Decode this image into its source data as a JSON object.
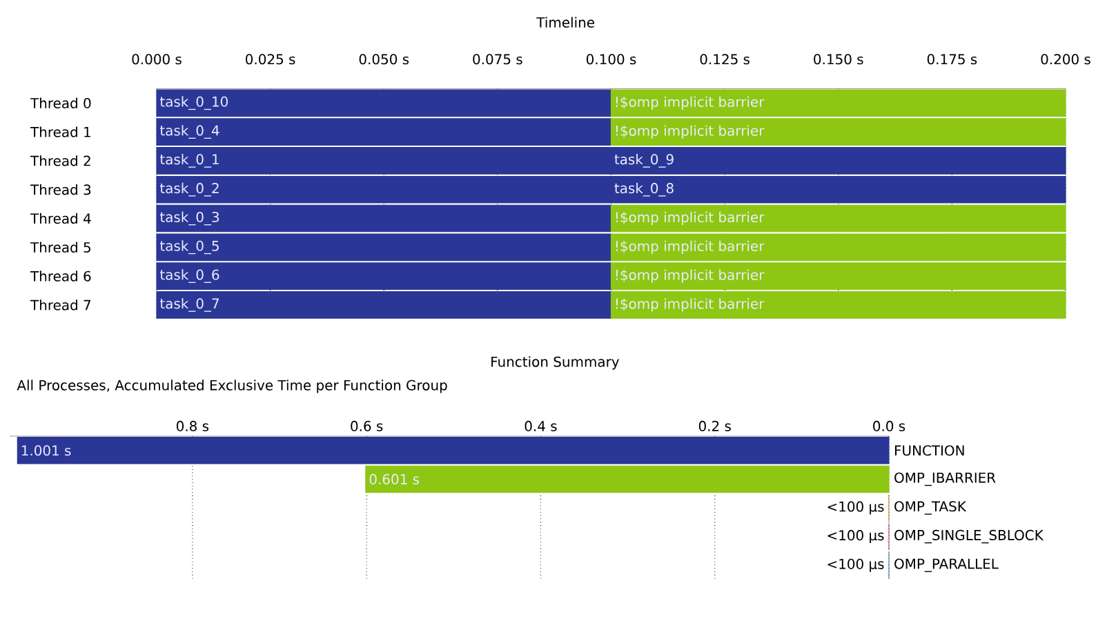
{
  "chart_data": [
    {
      "type": "bar",
      "title": "Timeline",
      "orientation": "horizontal",
      "stacked": true,
      "grid": "x",
      "categories": [
        "Thread 0",
        "Thread 1",
        "Thread 2",
        "Thread 3",
        "Thread 4",
        "Thread 5",
        "Thread 6",
        "Thread 7"
      ],
      "xlim": [
        0,
        0.2
      ],
      "xticks": [
        {
          "value": 0,
          "label": "0.000 s"
        },
        {
          "value": 0.025,
          "label": "0.025 s"
        },
        {
          "value": 0.05,
          "label": "0.050 s"
        },
        {
          "value": 0.075,
          "label": "0.075 s"
        },
        {
          "value": 0.1,
          "label": "0.100 s"
        },
        {
          "value": 0.125,
          "label": "0.125 s"
        },
        {
          "value": 0.15,
          "label": "0.150 s"
        },
        {
          "value": 0.175,
          "label": "0.175 s"
        },
        {
          "value": 0.2,
          "label": "0.200 s"
        }
      ],
      "series": [
        {
          "color": "#2b3796",
          "values": [
            0.1,
            0.1,
            0.1,
            0.1,
            0.1,
            0.1,
            0.1,
            0.1
          ],
          "value_labels": [
            "task_0_10",
            "task_0_4",
            "task_0_1",
            "task_0_2",
            "task_0_3",
            "task_0_5",
            "task_0_6",
            "task_0_7"
          ]
        },
        {
          "colors": [
            "#8dc714",
            "#8dc714",
            "#2b3796",
            "#2b3796",
            "#8dc714",
            "#8dc714",
            "#8dc714",
            "#8dc714"
          ],
          "values": [
            0.1,
            0.1,
            0.1,
            0.1,
            0.1,
            0.1,
            0.1,
            0.1
          ],
          "value_labels": [
            "!$omp implicit barrier",
            "!$omp implicit barrier",
            "task_0_9",
            "task_0_8",
            "!$omp implicit barrier",
            "!$omp implicit barrier",
            "!$omp implicit barrier",
            "!$omp implicit barrier"
          ]
        }
      ]
    },
    {
      "type": "bar",
      "title": "Function Summary",
      "subtitle": "All Processes, Accumulated Exclusive Time per Function Group",
      "orientation": "horizontal",
      "grid": "x",
      "categories": [
        "FUNCTION",
        "OMP_IBARRIER",
        "OMP_TASK",
        "OMP_SINGLE_SBLOCK",
        "OMP_PARALLEL"
      ],
      "values": [
        1.001,
        0.601,
        0,
        0,
        0
      ],
      "value_labels": [
        "1.001 s",
        "0.601 s",
        "<100 µs",
        "<100 µs",
        "<100 µs"
      ],
      "colors": [
        "#2b3796",
        "#8dc714",
        "#c8843c",
        "#b8506a",
        "#5a7a98"
      ],
      "xlim": [
        1.01,
        0
      ],
      "xticks": [
        {
          "value": 0.8,
          "label": "0.8 s"
        },
        {
          "value": 0.6,
          "label": "0.6 s"
        },
        {
          "value": 0.4,
          "label": "0.4 s"
        },
        {
          "value": 0.2,
          "label": "0.2 s"
        },
        {
          "value": 0,
          "label": "0.0 s"
        }
      ]
    }
  ]
}
